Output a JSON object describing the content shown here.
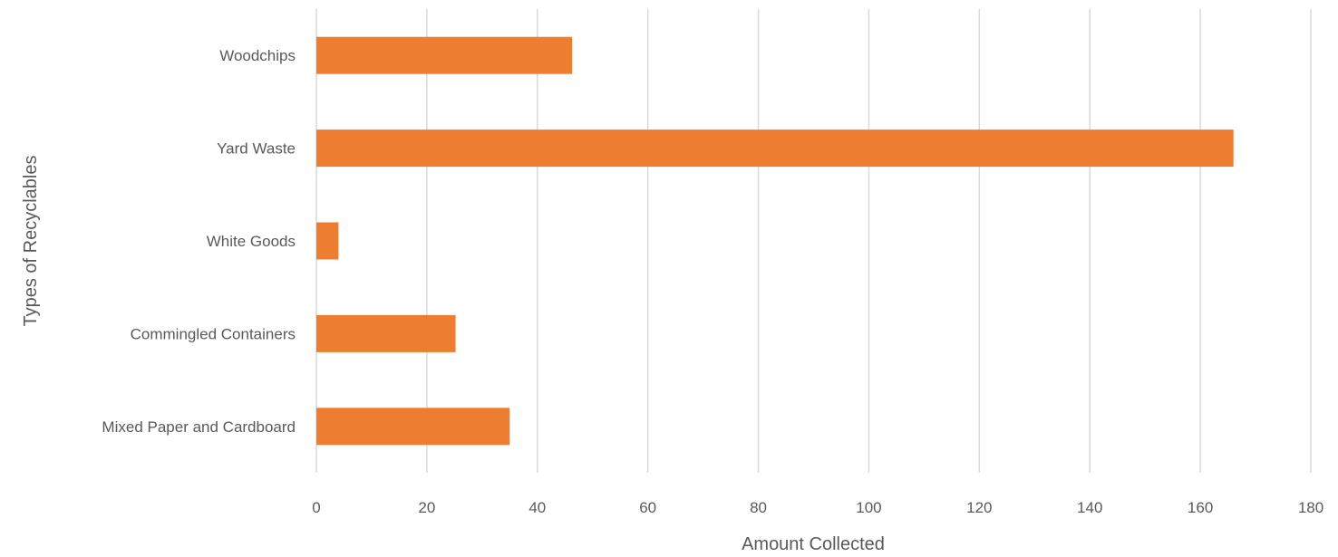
{
  "chart_data": {
    "type": "bar",
    "orientation": "horizontal",
    "categories": [
      "Woodchips",
      "Yard Waste",
      "White Goods",
      "Commingled Containers",
      "Mixed Paper and Cardboard"
    ],
    "values": [
      46.3,
      166,
      4,
      25.2,
      35
    ],
    "xlabel": "Amount Collected",
    "ylabel": "Types of Recyclables",
    "xlim": [
      0,
      180
    ],
    "x_ticks": [
      "0",
      "20",
      "40",
      "60",
      "80",
      "100",
      "120",
      "140",
      "160",
      "180"
    ],
    "grid": "vertical",
    "legend": "none",
    "bar_color": "#ED7D31"
  }
}
